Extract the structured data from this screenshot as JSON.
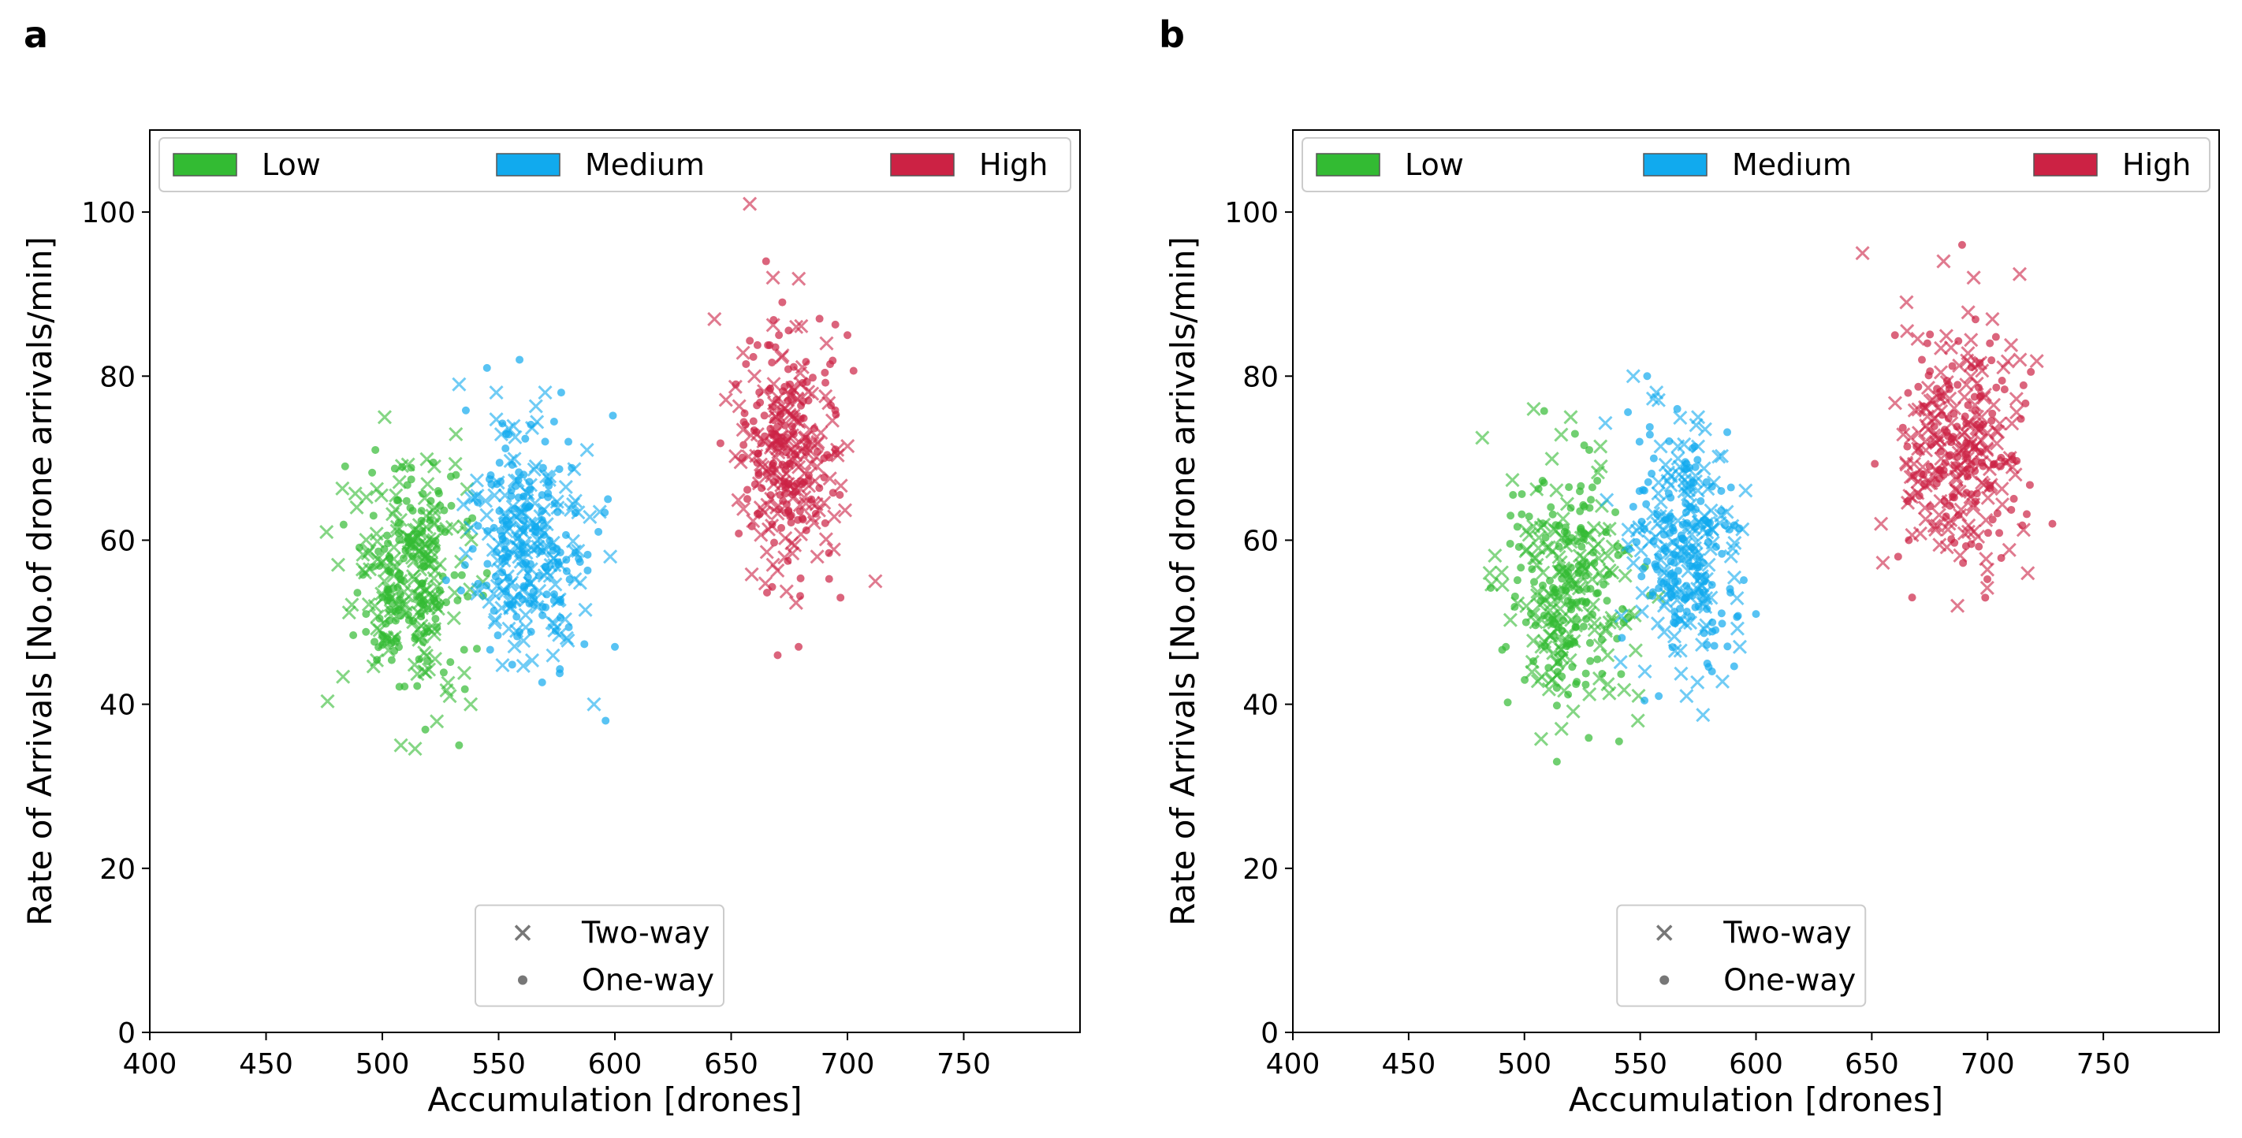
{
  "figure": {
    "panel_labels": [
      "a",
      "b"
    ]
  },
  "legends": {
    "traffic": [
      {
        "label": "Low",
        "color": "#33bb33"
      },
      {
        "label": "Medium",
        "color": "#11aaee"
      },
      {
        "label": "High",
        "color": "#cc2244"
      }
    ],
    "markers": [
      {
        "label": "Two-way",
        "symbol": "x",
        "color": "#777777"
      },
      {
        "label": "One-way",
        "symbol": "dot",
        "color": "#777777"
      }
    ]
  },
  "chart_data": [
    {
      "panel": "a",
      "type": "scatter",
      "title": "",
      "xlabel": "Accumulation [drones]",
      "ylabel": "Rate of Arrivals [No.of drone arrivals/min]",
      "xlim": [
        400,
        800
      ],
      "ylim": [
        0,
        110
      ],
      "xticks": [
        400,
        450,
        500,
        550,
        600,
        650,
        700,
        750
      ],
      "yticks": [
        0,
        20,
        40,
        60,
        80,
        100
      ],
      "grid": false,
      "legend_position": "top (traffic level), lower-center (marker type)",
      "series": [
        {
          "name": "Low",
          "color": "#33bb33",
          "cluster": {
            "x_center": 512,
            "x_spread": 12,
            "y_center": 55,
            "y_spread": 7
          },
          "points": [
            [
              476,
              61
            ],
            [
              484,
              69
            ],
            [
              489,
              64
            ],
            [
              497,
              71
            ],
            [
              501,
              75
            ],
            [
              503,
              58
            ],
            [
              508,
              35
            ],
            [
              514,
              48
            ],
            [
              520,
              57
            ],
            [
              524,
              66
            ],
            [
              529,
              41
            ],
            [
              533,
              35
            ],
            [
              538,
              40
            ],
            [
              545,
              56
            ],
            [
              481,
              57
            ],
            [
              493,
              51
            ],
            [
              518,
              44
            ],
            [
              527,
              61
            ]
          ]
        },
        {
          "name": "Medium",
          "color": "#11aaee",
          "cluster": {
            "x_center": 562,
            "x_spread": 11,
            "y_center": 60,
            "y_spread": 7
          },
          "points": [
            [
              533,
              79
            ],
            [
              545,
              81
            ],
            [
              549,
              78
            ],
            [
              559,
              82
            ],
            [
              570,
              78
            ],
            [
              580,
              72
            ],
            [
              588,
              71
            ],
            [
              597,
              65
            ],
            [
              598,
              58
            ],
            [
              600,
              47
            ],
            [
              591,
              40
            ],
            [
              596,
              38
            ],
            [
              574,
              49
            ],
            [
              550,
              55
            ],
            [
              566,
              69
            ]
          ]
        },
        {
          "name": "High",
          "color": "#cc2244",
          "cluster": {
            "x_center": 675,
            "x_spread": 11,
            "y_center": 70,
            "y_spread": 7
          },
          "points": [
            [
              658,
              101
            ],
            [
              665,
              94
            ],
            [
              668,
              92
            ],
            [
              672,
              89
            ],
            [
              678,
              86
            ],
            [
              688,
              87
            ],
            [
              691,
              84
            ],
            [
              700,
              85
            ],
            [
              712,
              55
            ],
            [
              697,
              53
            ],
            [
              687,
              58
            ],
            [
              679,
              47
            ],
            [
              668,
              57
            ],
            [
              652,
              79
            ],
            [
              660,
              80
            ]
          ]
        }
      ]
    },
    {
      "panel": "b",
      "type": "scatter",
      "title": "",
      "xlabel": "Accumulation [drones]",
      "ylabel": "Rate of Arrivals [No.of drone arrivals/min]",
      "xlim": [
        400,
        800
      ],
      "ylim": [
        0,
        110
      ],
      "xticks": [
        400,
        450,
        500,
        550,
        600,
        650,
        700,
        750
      ],
      "yticks": [
        0,
        20,
        40,
        60,
        80,
        100
      ],
      "grid": false,
      "legend_position": "top (traffic level), lower-center (marker type)",
      "series": [
        {
          "name": "Low",
          "color": "#33bb33",
          "cluster": {
            "x_center": 518,
            "x_spread": 13,
            "y_center": 54,
            "y_spread": 7
          },
          "points": [
            [
              485,
              56
            ],
            [
              492,
              47
            ],
            [
              504,
              76
            ],
            [
              514,
              42
            ],
            [
              516,
              37
            ],
            [
              514,
              33
            ],
            [
              520,
              75
            ],
            [
              528,
              71
            ],
            [
              533,
              69
            ],
            [
              540,
              48
            ],
            [
              549,
              38
            ],
            [
              494,
              63
            ]
          ]
        },
        {
          "name": "Medium",
          "color": "#11aaee",
          "cluster": {
            "x_center": 569,
            "x_spread": 11,
            "y_center": 59,
            "y_spread": 7
          },
          "points": [
            [
              547,
              80
            ],
            [
              553,
              80
            ],
            [
              557,
              78
            ],
            [
              566,
              76
            ],
            [
              575,
              75
            ],
            [
              585,
              66
            ],
            [
              590,
              59
            ],
            [
              600,
              51
            ],
            [
              593,
              47
            ],
            [
              581,
              44
            ],
            [
              570,
              41
            ],
            [
              558,
              41
            ],
            [
              552,
              44
            ]
          ]
        },
        {
          "name": "High",
          "color": "#cc2244",
          "cluster": {
            "x_center": 688,
            "x_spread": 14,
            "y_center": 71,
            "y_spread": 7
          },
          "points": [
            [
              646,
              95
            ],
            [
              660,
              85
            ],
            [
              665,
              89
            ],
            [
              674,
              84
            ],
            [
              681,
              94
            ],
            [
              689,
              96
            ],
            [
              694,
              92
            ],
            [
              701,
              84
            ],
            [
              714,
              82
            ],
            [
              728,
              62
            ],
            [
              712,
              68
            ],
            [
              699,
              53
            ],
            [
              687,
              52
            ],
            [
              666,
              60
            ],
            [
              654,
              62
            ]
          ]
        }
      ]
    }
  ]
}
